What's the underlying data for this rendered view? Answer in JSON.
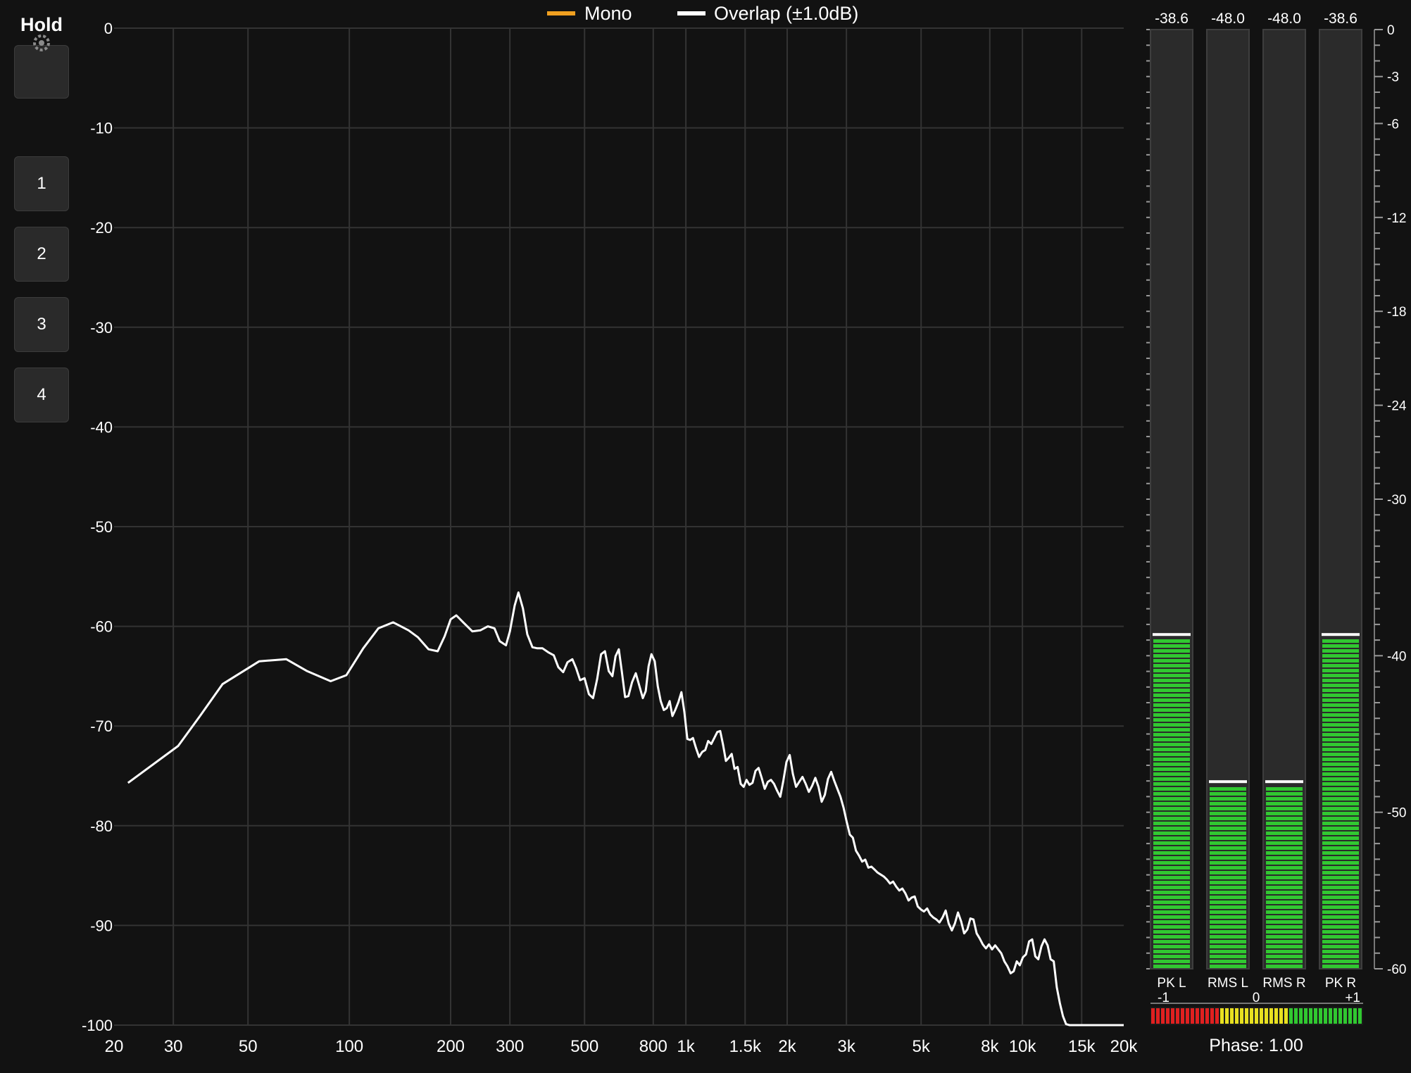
{
  "sidebar": {
    "hold_label": "Hold",
    "preset_buttons": [
      "1",
      "2",
      "3",
      "4"
    ]
  },
  "legend": [
    {
      "label": "Mono",
      "color": "#f0a020"
    },
    {
      "label": "Overlap (±1.0dB)",
      "color": "#ffffff"
    }
  ],
  "spectrum": {
    "y_axis_labels": [
      "0",
      "-10",
      "-20",
      "-30",
      "-40",
      "-50",
      "-60",
      "-70",
      "-80",
      "-90",
      "-100"
    ],
    "y_range_db": [
      -100,
      0
    ],
    "x_axis_labels": [
      "20",
      "30",
      "50",
      "100",
      "200",
      "300",
      "500",
      "800",
      "1k",
      "1.5k",
      "2k",
      "3k",
      "5k",
      "8k",
      "10k",
      "15k",
      "20k"
    ],
    "x_axis_values_hz": [
      20,
      30,
      50,
      100,
      200,
      300,
      500,
      800,
      1000,
      1500,
      2000,
      3000,
      5000,
      8000,
      10000,
      15000,
      20000
    ],
    "x_scale": "log",
    "curve_color": "#ffffff",
    "curve_points": [
      [
        22,
        -75.7
      ],
      [
        31,
        -72
      ],
      [
        36,
        -69
      ],
      [
        42,
        -65.8
      ],
      [
        54,
        -63.5
      ],
      [
        65,
        -63.3
      ],
      [
        75,
        -64.5
      ],
      [
        88,
        -65.5
      ],
      [
        98,
        -64.9
      ],
      [
        110,
        -62.2
      ],
      [
        122,
        -60.2
      ],
      [
        135,
        -59.6
      ],
      [
        150,
        -60.4
      ],
      [
        160,
        -61.1
      ],
      [
        172,
        -62.3
      ],
      [
        183,
        -62.5
      ],
      [
        192,
        -61
      ],
      [
        200,
        -59.3
      ],
      [
        208,
        -58.9
      ],
      [
        218,
        -59.6
      ],
      [
        232,
        -60.5
      ],
      [
        245,
        -60.4
      ],
      [
        258,
        -60
      ],
      [
        270,
        -60.2
      ],
      [
        280,
        -61.5
      ],
      [
        292,
        -61.9
      ],
      [
        300,
        -60.5
      ],
      [
        310,
        -57.9
      ],
      [
        318,
        -56.6
      ],
      [
        328,
        -58.2
      ],
      [
        338,
        -60.8
      ],
      [
        350,
        -62.1
      ],
      [
        362,
        -62.2
      ],
      [
        375,
        -62.2
      ],
      [
        390,
        -62.6
      ],
      [
        405,
        -62.9
      ],
      [
        418,
        -64.1
      ],
      [
        432,
        -64.6
      ],
      [
        445,
        -63.6
      ],
      [
        460,
        -63.3
      ],
      [
        472,
        -64.2
      ],
      [
        485,
        -65.4
      ],
      [
        500,
        -65.2
      ],
      [
        515,
        -66.8
      ],
      [
        530,
        -67.2
      ],
      [
        545,
        -65.3
      ],
      [
        560,
        -62.8
      ],
      [
        575,
        -62.5
      ],
      [
        590,
        -64.5
      ],
      [
        605,
        -65
      ],
      [
        618,
        -63
      ],
      [
        632,
        -62.3
      ],
      [
        645,
        -64.5
      ],
      [
        660,
        -67.1
      ],
      [
        675,
        -67
      ],
      [
        692,
        -65.6
      ],
      [
        710,
        -64.7
      ],
      [
        728,
        -66
      ],
      [
        745,
        -67.2
      ],
      [
        760,
        -66.5
      ],
      [
        775,
        -64
      ],
      [
        790,
        -62.8
      ],
      [
        808,
        -63.5
      ],
      [
        825,
        -66
      ],
      [
        842,
        -67.5
      ],
      [
        860,
        -68.4
      ],
      [
        878,
        -68.2
      ],
      [
        895,
        -67.5
      ],
      [
        912,
        -69
      ],
      [
        930,
        -68.4
      ],
      [
        950,
        -67.6
      ],
      [
        970,
        -66.6
      ],
      [
        990,
        -68.6
      ],
      [
        1010,
        -71.3
      ],
      [
        1030,
        -71.4
      ],
      [
        1050,
        -71.2
      ],
      [
        1072,
        -72.2
      ],
      [
        1095,
        -73.1
      ],
      [
        1118,
        -72.6
      ],
      [
        1142,
        -72.4
      ],
      [
        1165,
        -71.5
      ],
      [
        1190,
        -71.8
      ],
      [
        1215,
        -71.2
      ],
      [
        1240,
        -70.6
      ],
      [
        1265,
        -70.5
      ],
      [
        1290,
        -71.9
      ],
      [
        1315,
        -73.5
      ],
      [
        1340,
        -73.2
      ],
      [
        1368,
        -72.8
      ],
      [
        1395,
        -74.3
      ],
      [
        1425,
        -74.1
      ],
      [
        1455,
        -75.8
      ],
      [
        1485,
        -76.1
      ],
      [
        1515,
        -75.4
      ],
      [
        1545,
        -75.9
      ],
      [
        1578,
        -75.7
      ],
      [
        1610,
        -74.5
      ],
      [
        1645,
        -74.2
      ],
      [
        1680,
        -75.2
      ],
      [
        1715,
        -76.3
      ],
      [
        1752,
        -75.6
      ],
      [
        1790,
        -75.4
      ],
      [
        1828,
        -75.8
      ],
      [
        1868,
        -76.5
      ],
      [
        1908,
        -77.1
      ],
      [
        1948,
        -75.5
      ],
      [
        1990,
        -73.6
      ],
      [
        2035,
        -72.9
      ],
      [
        2080,
        -74.8
      ],
      [
        2125,
        -76.1
      ],
      [
        2172,
        -75.6
      ],
      [
        2220,
        -75.1
      ],
      [
        2270,
        -75.8
      ],
      [
        2320,
        -76.6
      ],
      [
        2372,
        -76
      ],
      [
        2425,
        -75.2
      ],
      [
        2478,
        -76.1
      ],
      [
        2532,
        -77.6
      ],
      [
        2588,
        -76.9
      ],
      [
        2645,
        -75.3
      ],
      [
        2702,
        -74.6
      ],
      [
        2760,
        -75.5
      ],
      [
        2820,
        -76.3
      ],
      [
        2880,
        -77.1
      ],
      [
        2942,
        -78.2
      ],
      [
        3005,
        -79.6
      ],
      [
        3070,
        -80.9
      ],
      [
        3135,
        -81.2
      ],
      [
        3202,
        -82.5
      ],
      [
        3270,
        -83
      ],
      [
        3340,
        -83.6
      ],
      [
        3412,
        -83.4
      ],
      [
        3485,
        -84.2
      ],
      [
        3560,
        -84.1
      ],
      [
        3636,
        -84.4
      ],
      [
        3714,
        -84.7
      ],
      [
        3794,
        -84.9
      ],
      [
        3875,
        -85.1
      ],
      [
        3958,
        -85.4
      ],
      [
        4042,
        -85.8
      ],
      [
        4128,
        -85.6
      ],
      [
        4216,
        -86.1
      ],
      [
        4306,
        -86.5
      ],
      [
        4398,
        -86.3
      ],
      [
        4492,
        -86.8
      ],
      [
        4588,
        -87.5
      ],
      [
        4686,
        -87.2
      ],
      [
        4786,
        -87.1
      ],
      [
        4888,
        -88.1
      ],
      [
        4992,
        -88.4
      ],
      [
        5100,
        -88.6
      ],
      [
        5210,
        -88.3
      ],
      [
        5320,
        -88.9
      ],
      [
        5435,
        -89.2
      ],
      [
        5550,
        -89.4
      ],
      [
        5670,
        -89.7
      ],
      [
        5790,
        -89.2
      ],
      [
        5915,
        -88.5
      ],
      [
        6040,
        -89.8
      ],
      [
        6170,
        -90.5
      ],
      [
        6300,
        -89.8
      ],
      [
        6435,
        -88.7
      ],
      [
        6575,
        -89.6
      ],
      [
        6715,
        -90.8
      ],
      [
        6860,
        -90.4
      ],
      [
        7005,
        -89.3
      ],
      [
        7155,
        -89.4
      ],
      [
        7310,
        -90.8
      ],
      [
        7465,
        -91.3
      ],
      [
        7625,
        -91.9
      ],
      [
        7790,
        -92.3
      ],
      [
        7955,
        -91.9
      ],
      [
        8125,
        -92.4
      ],
      [
        8300,
        -92
      ],
      [
        8475,
        -92.4
      ],
      [
        8655,
        -92.8
      ],
      [
        8840,
        -93.6
      ],
      [
        9030,
        -94.1
      ],
      [
        9225,
        -94.8
      ],
      [
        9420,
        -94.6
      ],
      [
        9620,
        -93.6
      ],
      [
        9825,
        -94
      ],
      [
        10035,
        -93.2
      ],
      [
        10250,
        -92.9
      ],
      [
        10470,
        -91.6
      ],
      [
        10690,
        -91.4
      ],
      [
        10920,
        -93.1
      ],
      [
        11150,
        -93.4
      ],
      [
        11390,
        -92.1
      ],
      [
        11630,
        -91.4
      ],
      [
        11880,
        -92
      ],
      [
        12130,
        -93.4
      ],
      [
        12390,
        -93.6
      ],
      [
        12650,
        -96.2
      ],
      [
        12920,
        -97.8
      ],
      [
        13200,
        -99.1
      ],
      [
        13480,
        -99.9
      ],
      [
        13800,
        -100
      ],
      [
        20000,
        -100
      ]
    ]
  },
  "level_meters": {
    "scale_labels": [
      "0",
      "-3",
      "-6",
      "-12",
      "-18",
      "-24",
      "-30",
      "-40",
      "-50",
      "-60"
    ],
    "scale_values": [
      0,
      -3,
      -6,
      -12,
      -18,
      -24,
      -30,
      -40,
      -50,
      -60
    ],
    "range_db": [
      -60,
      0
    ],
    "channels": [
      {
        "name": "PK L",
        "readout": "-38.6",
        "level_db": -38.6
      },
      {
        "name": "RMS L",
        "readout": "-48.0",
        "level_db": -48.0
      },
      {
        "name": "RMS R",
        "readout": "-48.0",
        "level_db": -48.0
      },
      {
        "name": "PK R",
        "readout": "-38.6",
        "level_db": -38.6
      }
    ],
    "meter_color": "#31c831",
    "peak_hold_color": "#ffffff"
  },
  "phase": {
    "scale_labels": [
      "-1",
      "0",
      "+1"
    ],
    "segment_colors": [
      "#e02020",
      "#e8e020",
      "#30c830"
    ],
    "readout": "Phase: 1.00",
    "value": 1.0
  }
}
